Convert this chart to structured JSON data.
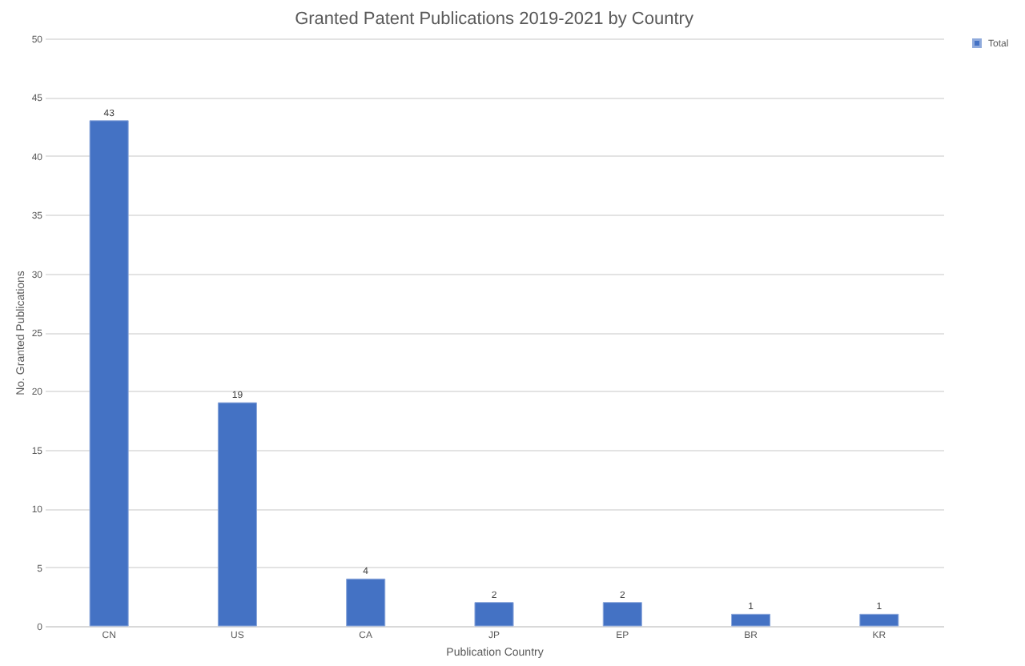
{
  "chart_data": {
    "type": "bar",
    "title": "Granted Patent Publications 2019-2021 by Country",
    "xlabel": "Publication Country",
    "ylabel": "No. Granted Publications",
    "categories": [
      "CN",
      "US",
      "CA",
      "JP",
      "EP",
      "BR",
      "KR"
    ],
    "series": [
      {
        "name": "Total",
        "color": "#4472c4",
        "values": [
          43,
          19,
          4,
          2,
          2,
          1,
          1
        ]
      }
    ],
    "ylim": [
      0,
      50
    ],
    "yticks": [
      0,
      5,
      10,
      15,
      20,
      25,
      30,
      35,
      40,
      45,
      50
    ],
    "grid": "y",
    "legend": "right",
    "data_labels": true
  }
}
